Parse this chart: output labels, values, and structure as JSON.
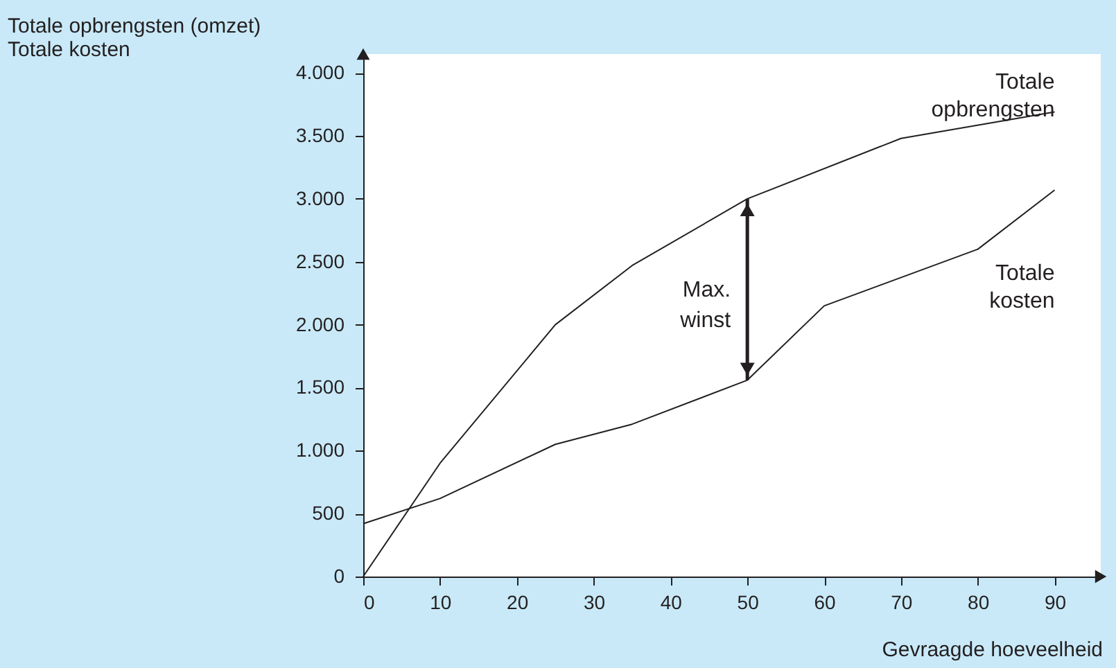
{
  "chart_data": {
    "type": "line",
    "ylabel": "Totale opbrengsten (omzet)\nTotale kosten",
    "xlabel": "Gevraagde hoeveelheid",
    "series": [
      {
        "name": "Totale opbrengsten",
        "color": "#231f20",
        "x": [
          0,
          10,
          25,
          35,
          50,
          70,
          90
        ],
        "values": [
          0,
          900,
          2000,
          2470,
          3000,
          3480,
          3690
        ]
      },
      {
        "name": "Totale kosten",
        "color": "#231f20",
        "x": [
          0,
          10,
          25,
          35,
          50,
          60,
          80,
          90
        ],
        "values": [
          420,
          620,
          1050,
          1210,
          1560,
          2150,
          2600,
          3070
        ]
      }
    ],
    "annotations": [
      "Max. winst"
    ],
    "xlim": [
      0,
      96
    ],
    "ylim": [
      0,
      4150
    ],
    "xticks": [
      0,
      10,
      20,
      30,
      40,
      50,
      60,
      70,
      80,
      90
    ],
    "yticks": [
      0,
      500,
      {
        "value": 1000,
        "label": "1.000"
      },
      {
        "value": 1500,
        "label": "1.500"
      },
      {
        "value": 2000,
        "label": "2.000"
      },
      {
        "value": 2500,
        "label": "2.500"
      },
      {
        "value": 3000,
        "label": "3.000"
      },
      {
        "value": 3500,
        "label": "3.500"
      },
      {
        "value": 4000,
        "label": "4.000"
      }
    ],
    "grid": false,
    "marker": "none",
    "line_style": "solid"
  }
}
